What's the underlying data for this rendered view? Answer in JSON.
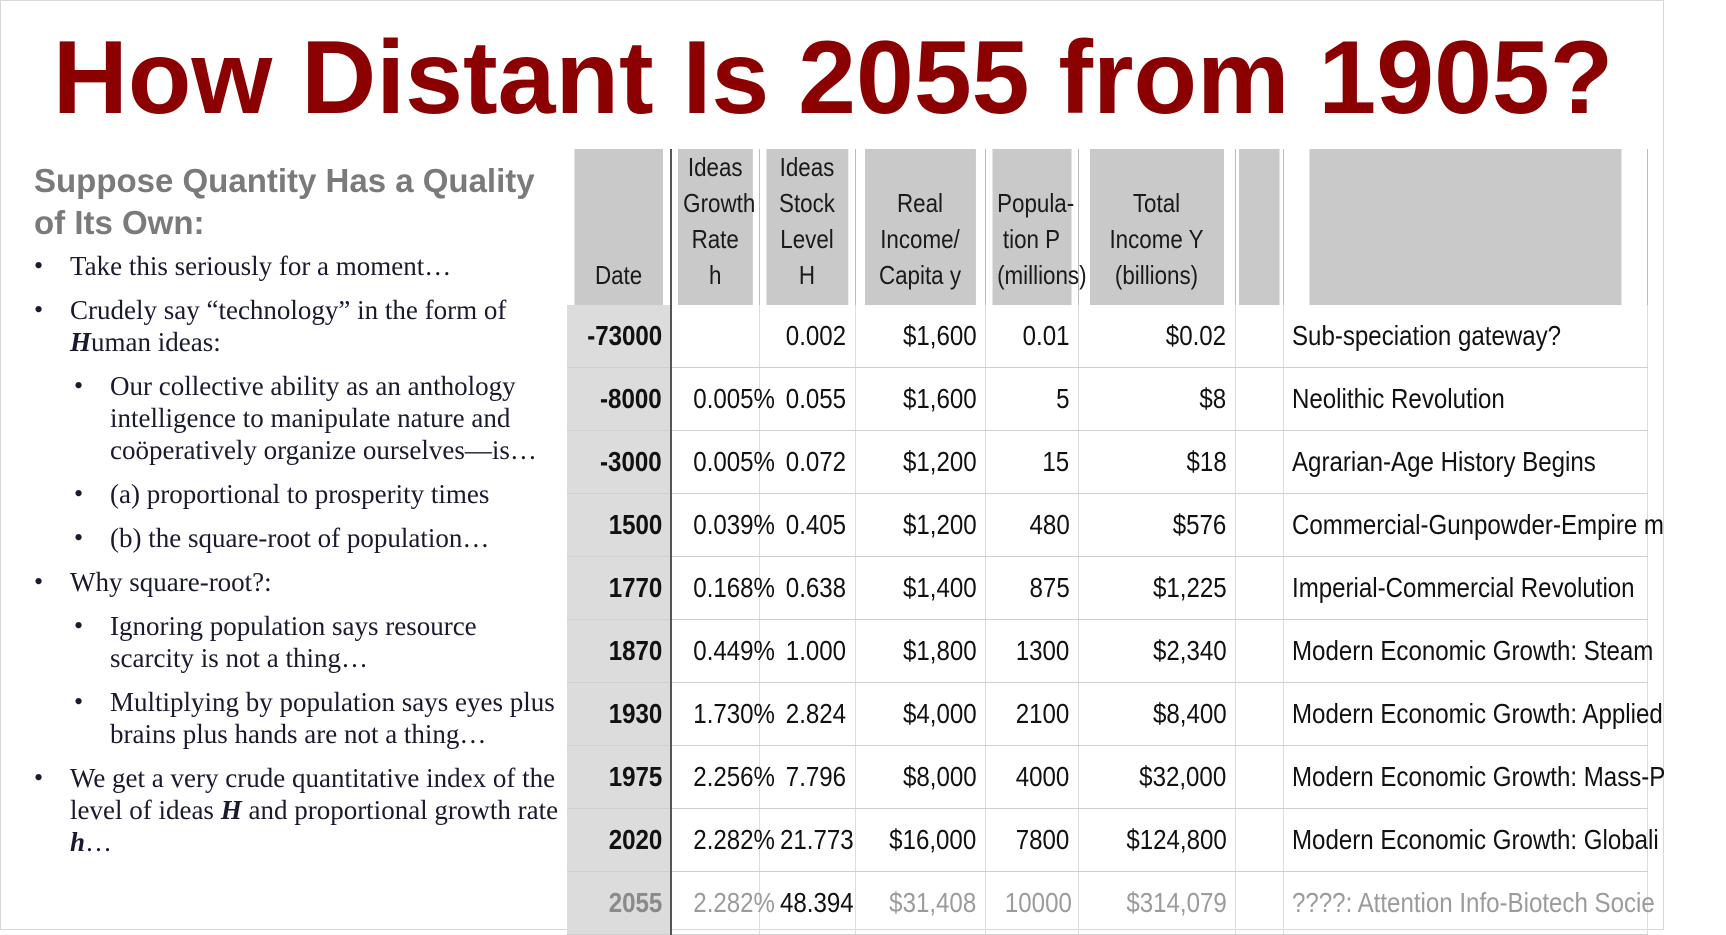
{
  "title": "How Distant Is 2055 from 1905?",
  "left_panel": {
    "subhead": "Suppose Quantity Has a Quality of Its Own:",
    "bullets": {
      "b1": "Take this seriously for a moment…",
      "b2_pre": "Crudely say “technology” in the form of ",
      "b2_em": "H",
      "b2_post": "uman ideas:",
      "b2a": "Our collective ability as an anthology intelligence to manipulate nature and coöperatively organize ourselves—is…",
      "b2b": "(a) proportional to prosperity times",
      "b2c": "(b) the square-root of population…",
      "b3": "Why square-root?:",
      "b3a": "Ignoring population says resource scarcity is not a thing…",
      "b3b": "Multiplying by population says eyes plus brains plus hands are not a thing…",
      "b4_pre": "We get a very crude quantitative index of the level of ideas ",
      "b4_em1": "H",
      "b4_mid": " and proportional growth rate ",
      "b4_em2": "h",
      "b4_post": "…"
    }
  },
  "table": {
    "headers": {
      "date": "Date",
      "growth_l1": "Ideas",
      "growth_l2": "Growth",
      "growth_l3": "Rate h",
      "stock_l1": "Ideas",
      "stock_l2": "Stock",
      "stock_l3": "Level H",
      "income_l1": "Real",
      "income_l2": "Income/",
      "income_l3": "Capita y",
      "pop_l1": "Popula-",
      "pop_l2": "tion P",
      "pop_l3": "(millions)",
      "total_l1": "Total Income Y",
      "total_l2": "(billions)"
    },
    "rows": [
      {
        "date": "-73000",
        "growth": "",
        "stock": "0.002",
        "income": "$1,600",
        "pop": "0.01",
        "total": "$0.02",
        "note": "Sub-speciation gateway?"
      },
      {
        "date": "-8000",
        "growth": "0.005%",
        "stock": "0.055",
        "income": "$1,600",
        "pop": "5",
        "total": "$8",
        "note": "Neolithic Revolution"
      },
      {
        "date": "-3000",
        "growth": "0.005%",
        "stock": "0.072",
        "income": "$1,200",
        "pop": "15",
        "total": "$18",
        "note": "Agrarian-Age History Begins"
      },
      {
        "date": "1500",
        "growth": "0.039%",
        "stock": "0.405",
        "income": "$1,200",
        "pop": "480",
        "total": "$576",
        "note": "Commercial-Gunpowder-Empire m"
      },
      {
        "date": "1770",
        "growth": "0.168%",
        "stock": "0.638",
        "income": "$1,400",
        "pop": "875",
        "total": "$1,225",
        "note": "Imperial-Commercial Revolution"
      },
      {
        "date": "1870",
        "growth": "0.449%",
        "stock": "1.000",
        "income": "$1,800",
        "pop": "1300",
        "total": "$2,340",
        "note": "Modern Economic Growth: Steam"
      },
      {
        "date": "1930",
        "growth": "1.730%",
        "stock": "2.824",
        "income": "$4,000",
        "pop": "2100",
        "total": "$8,400",
        "note": "Modern Economic Growth: Applied"
      },
      {
        "date": "1975",
        "growth": "2.256%",
        "stock": "7.796",
        "income": "$8,000",
        "pop": "4000",
        "total": "$32,000",
        "note": "Modern Economic Growth: Mass-P"
      },
      {
        "date": "2020",
        "growth": "2.282%",
        "stock": "21.773",
        "income": "$16,000",
        "pop": "7800",
        "total": "$124,800",
        "note": "Modern Economic Growth: Globali"
      },
      {
        "date": "2055",
        "growth": "2.282%",
        "stock": "48.394",
        "income": "$31,408",
        "pop": "10000",
        "total": "$314,079",
        "note": "????: Attention Info-Biotech Socie"
      }
    ]
  }
}
